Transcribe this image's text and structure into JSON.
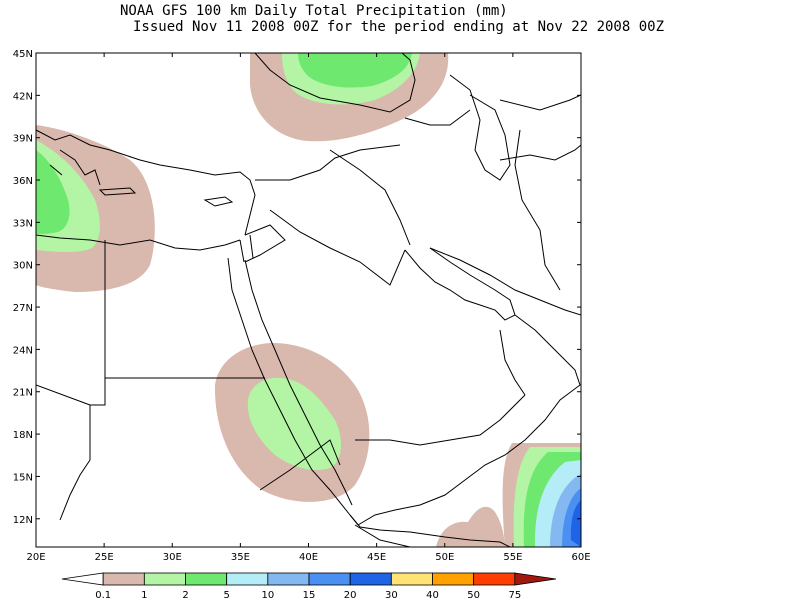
{
  "title": {
    "line1": "NOAA GFS 100 km Daily Total Precipitation (mm)",
    "line2": "Issued Nov 11 2008 00Z for the period ending at Nov 22 2008 00Z"
  },
  "map": {
    "lon_ticks": [
      "20E",
      "25E",
      "30E",
      "35E",
      "40E",
      "45E",
      "50E",
      "55E",
      "60E"
    ],
    "lat_ticks": [
      "45N",
      "42N",
      "39N",
      "36N",
      "33N",
      "30N",
      "27N",
      "24N",
      "21N",
      "18N",
      "15N",
      "12N"
    ],
    "extent": {
      "lon": [
        20,
        60
      ],
      "lat": [
        10,
        45
      ]
    }
  },
  "legend": {
    "labels": [
      "0.1",
      "1",
      "2",
      "5",
      "10",
      "15",
      "20",
      "30",
      "40",
      "50",
      "75"
    ],
    "colors": [
      "#ffffff",
      "#d9b8ae",
      "#b3f5a5",
      "#6ee86e",
      "#b4ecf7",
      "#83b8f0",
      "#4a8ff2",
      "#1f64e6",
      "#ffe375",
      "#ffa200",
      "#ff3d00",
      "#a1180d"
    ]
  },
  "precip_colors": {
    "0.1-1": "#d9b8ae",
    "1-2": "#b3f5a5",
    "2-5": "#6ee86e",
    "5-10": "#b4ecf7",
    "10-15": "#83b8f0",
    "15-20": "#4a8ff2",
    "20-30": "#1f64e6"
  }
}
